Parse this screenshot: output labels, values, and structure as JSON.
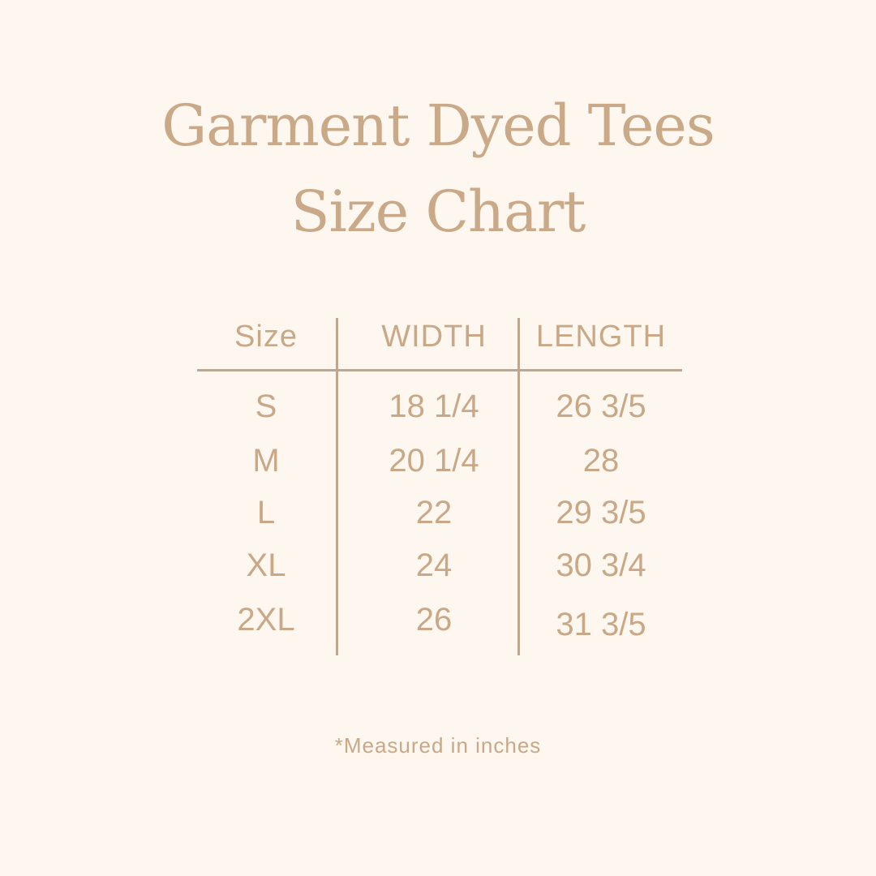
{
  "title": {
    "line1": "Garment Dyed Tees",
    "line2": "Size Chart"
  },
  "table": {
    "headers": [
      "Size",
      "WIDTH",
      "LENGTH"
    ],
    "rows": [
      [
        "S",
        "18 1/4",
        "26 3/5"
      ],
      [
        "M",
        "20 1/4",
        "28"
      ],
      [
        "L",
        "22",
        "29 3/5"
      ],
      [
        "XL",
        "24",
        "30 3/4"
      ],
      [
        "2XL",
        "26",
        "31 3/5"
      ]
    ]
  },
  "footnote": "*Measured in inches",
  "colors": {
    "background": "#fdf7ef",
    "text": "#c8a886",
    "lines": "#bfa68f"
  }
}
